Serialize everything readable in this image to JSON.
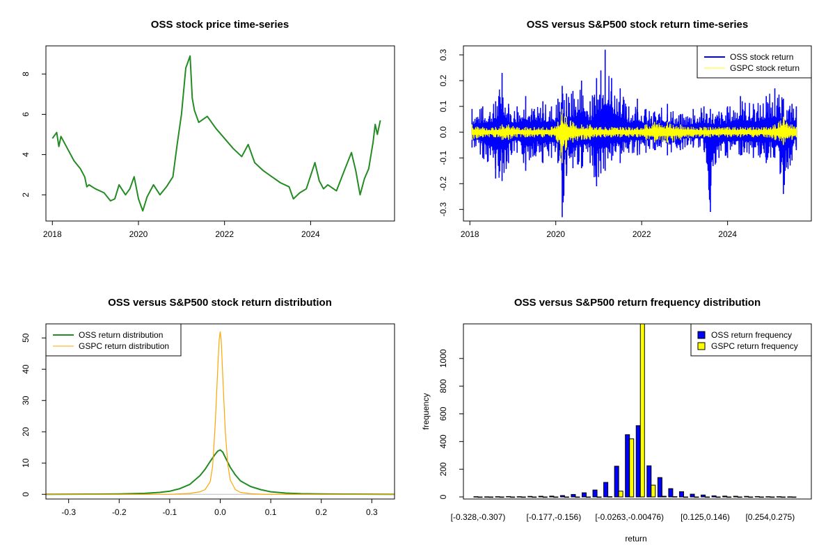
{
  "chart_data": [
    {
      "id": "price",
      "type": "line",
      "title": "OSS stock price time-series",
      "xlabel": "",
      "ylabel": "",
      "xlim": [
        2017.85,
        2025.95
      ],
      "ylim": [
        0.7,
        9.4
      ],
      "x_ticks": [
        2018,
        2020,
        2022,
        2024
      ],
      "x_tick_labels": [
        "2018",
        "2020",
        "2022",
        "2024"
      ],
      "y_ticks": [
        2,
        4,
        6,
        8
      ],
      "y_tick_labels": [
        "2",
        "4",
        "6",
        "8"
      ],
      "series": [
        {
          "name": "OSS price",
          "color": "#228B22",
          "x": [
            2018.0,
            2018.1,
            2018.15,
            2018.2,
            2018.35,
            2018.5,
            2018.65,
            2018.75,
            2018.8,
            2018.85,
            2019.0,
            2019.2,
            2019.35,
            2019.45,
            2019.55,
            2019.7,
            2019.8,
            2019.9,
            2020.0,
            2020.05,
            2020.1,
            2020.2,
            2020.35,
            2020.5,
            2020.65,
            2020.8,
            2020.9,
            2021.0,
            2021.1,
            2021.2,
            2021.25,
            2021.3,
            2021.4,
            2021.6,
            2021.8,
            2022.0,
            2022.2,
            2022.4,
            2022.55,
            2022.7,
            2022.9,
            2023.1,
            2023.3,
            2023.5,
            2023.6,
            2023.75,
            2023.9,
            2024.1,
            2024.2,
            2024.3,
            2024.4,
            2024.6,
            2024.8,
            2024.95,
            2025.05,
            2025.15,
            2025.25,
            2025.35,
            2025.45,
            2025.5,
            2025.55,
            2025.62
          ],
          "y": [
            4.8,
            5.1,
            4.4,
            4.9,
            4.3,
            3.7,
            3.3,
            2.9,
            2.4,
            2.5,
            2.3,
            2.1,
            1.7,
            1.8,
            2.5,
            2.0,
            2.3,
            2.9,
            1.8,
            1.5,
            1.2,
            1.9,
            2.5,
            2.0,
            2.4,
            2.9,
            4.5,
            6.0,
            8.3,
            8.9,
            6.8,
            6.2,
            5.6,
            5.9,
            5.3,
            4.8,
            4.3,
            3.9,
            4.5,
            3.6,
            3.2,
            2.9,
            2.6,
            2.4,
            1.8,
            2.1,
            2.3,
            3.6,
            2.7,
            2.3,
            2.5,
            2.2,
            3.3,
            4.1,
            3.2,
            2.0,
            2.8,
            3.3,
            4.6,
            5.5,
            5.0,
            5.7
          ]
        }
      ]
    },
    {
      "id": "returns",
      "type": "line",
      "title": "OSS versus S&P500 stock return time-series",
      "xlabel": "",
      "ylabel": "",
      "xlim": [
        2017.85,
        2025.95
      ],
      "ylim": [
        -0.345,
        0.335
      ],
      "x_ticks": [
        2018,
        2020,
        2022,
        2024
      ],
      "x_tick_labels": [
        "2018",
        "2020",
        "2022",
        "2024"
      ],
      "y_ticks": [
        -0.3,
        -0.2,
        -0.1,
        0.0,
        0.1,
        0.2,
        0.3
      ],
      "y_tick_labels": [
        "-0.3",
        "-0.2",
        "-0.1",
        "0.0",
        "0.1",
        "0.2",
        "0.3"
      ],
      "legend": {
        "position": "top-right",
        "items": [
          {
            "label": "OSS stock return",
            "color": "#0000FF"
          },
          {
            "label": "GSPC stock return",
            "color": "#FFFF00"
          }
        ]
      },
      "series": [
        {
          "name": "OSS stock return",
          "color": "#0000FF",
          "x": [
            2018.05,
            2018.3,
            2018.6,
            2018.75,
            2018.9,
            2019.1,
            2019.3,
            2019.5,
            2019.7,
            2019.9,
            2020.05,
            2020.15,
            2020.25,
            2020.4,
            2020.6,
            2020.8,
            2020.95,
            2021.05,
            2021.15,
            2021.3,
            2021.5,
            2021.7,
            2021.9,
            2022.1,
            2022.3,
            2022.6,
            2022.9,
            2023.2,
            2023.45,
            2023.6,
            2023.8,
            2024.0,
            2024.3,
            2024.6,
            2024.9,
            2025.1,
            2025.3,
            2025.5,
            2025.6
          ],
          "y_high": [
            0.09,
            0.1,
            0.12,
            0.23,
            0.11,
            0.1,
            0.14,
            0.09,
            0.12,
            0.1,
            0.13,
            0.18,
            0.15,
            0.16,
            0.2,
            0.12,
            0.21,
            0.24,
            0.32,
            0.21,
            0.17,
            0.1,
            0.13,
            0.09,
            0.08,
            0.11,
            0.07,
            0.09,
            0.1,
            0.09,
            0.08,
            0.1,
            0.14,
            0.11,
            0.14,
            0.17,
            0.13,
            0.11,
            0.1
          ],
          "y_low": [
            -0.06,
            -0.1,
            -0.18,
            -0.19,
            -0.12,
            -0.08,
            -0.15,
            -0.09,
            -0.12,
            -0.1,
            -0.12,
            -0.33,
            -0.17,
            -0.14,
            -0.14,
            -0.12,
            -0.21,
            -0.16,
            -0.15,
            -0.11,
            -0.12,
            -0.08,
            -0.09,
            -0.08,
            -0.07,
            -0.09,
            -0.07,
            -0.06,
            -0.07,
            -0.31,
            -0.1,
            -0.1,
            -0.09,
            -0.1,
            -0.12,
            -0.1,
            -0.24,
            -0.11,
            -0.07
          ]
        },
        {
          "name": "GSPC stock return",
          "color": "#FFFF00",
          "x": [
            2018.05,
            2018.3,
            2018.6,
            2018.75,
            2018.9,
            2019.1,
            2019.3,
            2019.5,
            2019.7,
            2019.9,
            2020.05,
            2020.15,
            2020.25,
            2020.4,
            2020.6,
            2020.8,
            2020.95,
            2021.05,
            2021.15,
            2021.3,
            2021.5,
            2021.7,
            2021.9,
            2022.1,
            2022.3,
            2022.6,
            2022.9,
            2023.2,
            2023.45,
            2023.6,
            2023.8,
            2024.0,
            2024.3,
            2024.6,
            2024.9,
            2025.1,
            2025.3,
            2025.5,
            2025.6
          ],
          "y_high": [
            0.03,
            0.02,
            0.02,
            0.03,
            0.03,
            0.02,
            0.02,
            0.02,
            0.02,
            0.02,
            0.04,
            0.09,
            0.06,
            0.04,
            0.03,
            0.03,
            0.02,
            0.02,
            0.02,
            0.02,
            0.02,
            0.02,
            0.02,
            0.03,
            0.04,
            0.04,
            0.03,
            0.02,
            0.02,
            0.02,
            0.02,
            0.02,
            0.02,
            0.02,
            0.02,
            0.03,
            0.06,
            0.03,
            0.02
          ],
          "y_low": [
            -0.03,
            -0.02,
            -0.02,
            -0.03,
            -0.03,
            -0.02,
            -0.02,
            -0.02,
            -0.02,
            -0.02,
            -0.04,
            -0.12,
            -0.06,
            -0.04,
            -0.03,
            -0.03,
            -0.02,
            -0.02,
            -0.02,
            -0.02,
            -0.02,
            -0.02,
            -0.02,
            -0.03,
            -0.04,
            -0.04,
            -0.03,
            -0.02,
            -0.02,
            -0.02,
            -0.02,
            -0.02,
            -0.02,
            -0.02,
            -0.02,
            -0.03,
            -0.05,
            -0.03,
            -0.02
          ]
        }
      ]
    },
    {
      "id": "density",
      "type": "line",
      "title": "OSS versus S&P500 stock return distribution",
      "xlabel": "",
      "ylabel": "",
      "xlim": [
        -0.345,
        0.345
      ],
      "ylim": [
        -1.5,
        54.5
      ],
      "x_ticks": [
        -0.3,
        -0.2,
        -0.1,
        0.0,
        0.1,
        0.2,
        0.3
      ],
      "x_tick_labels": [
        "-0.3",
        "-0.2",
        "-0.1",
        "0.0",
        "0.1",
        "0.2",
        "0.3"
      ],
      "y_ticks": [
        0,
        10,
        20,
        30,
        40,
        50
      ],
      "y_tick_labels": [
        "0",
        "10",
        "20",
        "30",
        "40",
        "50"
      ],
      "legend": {
        "position": "top-left",
        "items": [
          {
            "label": "OSS return distribution",
            "color": "#228B22"
          },
          {
            "label": "GSPC return distribution",
            "color": "#FFA500"
          }
        ]
      },
      "series": [
        {
          "name": "OSS return distribution",
          "color": "#228B22",
          "x": [
            -0.345,
            -0.25,
            -0.2,
            -0.15,
            -0.12,
            -0.1,
            -0.08,
            -0.06,
            -0.04,
            -0.03,
            -0.02,
            -0.01,
            -0.005,
            0.0,
            0.005,
            0.01,
            0.02,
            0.03,
            0.04,
            0.06,
            0.08,
            0.1,
            0.13,
            0.16,
            0.2,
            0.25,
            0.345
          ],
          "y": [
            0.0,
            0.05,
            0.1,
            0.3,
            0.6,
            1.0,
            1.8,
            3.2,
            6.0,
            8.0,
            10.5,
            12.8,
            13.8,
            14.2,
            13.5,
            11.8,
            8.6,
            6.2,
            4.3,
            2.5,
            1.5,
            0.8,
            0.4,
            0.2,
            0.1,
            0.05,
            0.0
          ]
        },
        {
          "name": "GSPC return distribution",
          "color": "#FFA500",
          "x": [
            -0.345,
            -0.1,
            -0.06,
            -0.04,
            -0.03,
            -0.02,
            -0.015,
            -0.01,
            -0.005,
            -0.002,
            0.0,
            0.002,
            0.005,
            0.01,
            0.015,
            0.02,
            0.03,
            0.04,
            0.06,
            0.09,
            0.345
          ],
          "y": [
            0.0,
            0.0,
            0.3,
            0.8,
            1.5,
            4.0,
            9.0,
            22.0,
            40.0,
            49.5,
            52.0,
            49.0,
            38.0,
            20.0,
            9.5,
            4.5,
            1.5,
            0.6,
            0.2,
            0.0,
            0.0
          ]
        }
      ]
    },
    {
      "id": "freq",
      "type": "bar",
      "title": "OSS versus S&P500 return frequency distribution",
      "xlabel": "return",
      "ylabel": "frequency",
      "ylim": [
        -15,
        1250
      ],
      "y_ticks": [
        0,
        200,
        400,
        600,
        800,
        1000
      ],
      "y_tick_labels": [
        "0",
        "200",
        "400",
        "600",
        "800",
        "1000"
      ],
      "x_tick_labels": [
        {
          "label": "[-0.328,-0.307)",
          "bin": 0
        },
        {
          "label": "[-0.177,-0.156)",
          "bin": 7
        },
        {
          "label": "[-0.0263,-0.00476)",
          "bin": 14
        },
        {
          "label": "[0.125,0.146)",
          "bin": 21
        },
        {
          "label": "[0.254,0.275)",
          "bin": 27
        }
      ],
      "legend": {
        "position": "top-right",
        "items": [
          {
            "label": "OSS return frequency",
            "color": "#0000FF"
          },
          {
            "label": "GSPC return frequency",
            "color": "#FFFF00"
          }
        ]
      },
      "series": [
        {
          "name": "OSS return frequency",
          "color": "#0000FF",
          "values": [
            2,
            1,
            2,
            3,
            2,
            4,
            5,
            6,
            10,
            18,
            30,
            50,
            105,
            222,
            450,
            515,
            225,
            140,
            60,
            38,
            20,
            14,
            8,
            6,
            5,
            4,
            3,
            2,
            2,
            1
          ]
        },
        {
          "name": "GSPC return frequency",
          "color": "#FFFF00",
          "values": [
            0,
            0,
            0,
            0,
            0,
            0,
            0,
            0,
            0,
            0,
            0,
            0,
            2,
            42,
            420,
            1250,
            85,
            5,
            2,
            0,
            0,
            0,
            0,
            0,
            0,
            0,
            0,
            0,
            0,
            0
          ]
        }
      ]
    }
  ]
}
